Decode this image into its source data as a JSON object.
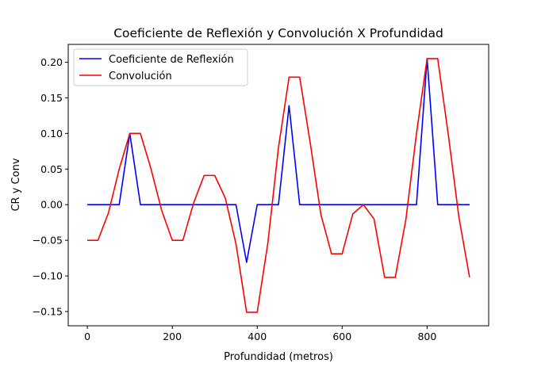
{
  "chart_data": {
    "type": "line",
    "title": "Coeficiente de Reflexión y Convolución X Profundidad",
    "xlabel": "Profundidad (metros)",
    "ylabel": "CR y Conv",
    "xlim": [
      -45,
      945
    ],
    "ylim": [
      -0.17,
      0.225
    ],
    "xticks": [
      0,
      200,
      400,
      600,
      800
    ],
    "xtick_labels": [
      "0",
      "200",
      "400",
      "600",
      "800"
    ],
    "yticks": [
      -0.15,
      -0.1,
      -0.05,
      0.0,
      0.05,
      0.1,
      0.15,
      0.2
    ],
    "ytick_labels": [
      "−0.15",
      "−0.10",
      "−0.05",
      "0.00",
      "0.05",
      "0.10",
      "0.15",
      "0.20"
    ],
    "grid": false,
    "legend_position": "top-left",
    "series": [
      {
        "name": "Coeficiente de Reflexión",
        "color": "#0000ff",
        "x": [
          0,
          25,
          50,
          75,
          100,
          125,
          150,
          175,
          200,
          225,
          250,
          275,
          300,
          325,
          350,
          375,
          400,
          425,
          450,
          475,
          500,
          525,
          550,
          575,
          600,
          625,
          650,
          675,
          700,
          725,
          750,
          775,
          800,
          825,
          850,
          875,
          900
        ],
        "y": [
          0,
          0,
          0,
          0,
          0.1,
          0,
          0,
          0,
          0,
          0,
          0,
          0,
          0,
          0,
          0,
          -0.081,
          0,
          0,
          0,
          0.139,
          0,
          0,
          0,
          0,
          0,
          0,
          0,
          0,
          0,
          0,
          0,
          0,
          0.205,
          0,
          0,
          0,
          0
        ]
      },
      {
        "name": "Convolución",
        "color": "#ff0000",
        "x": [
          0,
          25,
          50,
          75,
          100,
          125,
          150,
          175,
          200,
          225,
          250,
          275,
          300,
          325,
          350,
          375,
          400,
          425,
          450,
          475,
          500,
          525,
          550,
          575,
          600,
          625,
          650,
          675,
          700,
          725,
          750,
          775,
          800,
          825,
          850,
          875,
          900
        ],
        "y": [
          -0.05,
          -0.05,
          -0.011,
          0.05,
          0.1,
          0.1,
          0.05,
          -0.008,
          -0.05,
          -0.05,
          0.002,
          0.041,
          0.041,
          0.009,
          -0.055,
          -0.151,
          -0.151,
          -0.054,
          0.08,
          0.179,
          0.179,
          0.086,
          -0.014,
          -0.069,
          -0.069,
          -0.013,
          0.0,
          -0.02,
          -0.102,
          -0.102,
          -0.021,
          0.1,
          0.205,
          0.205,
          0.098,
          -0.018,
          -0.102
        ]
      }
    ]
  }
}
